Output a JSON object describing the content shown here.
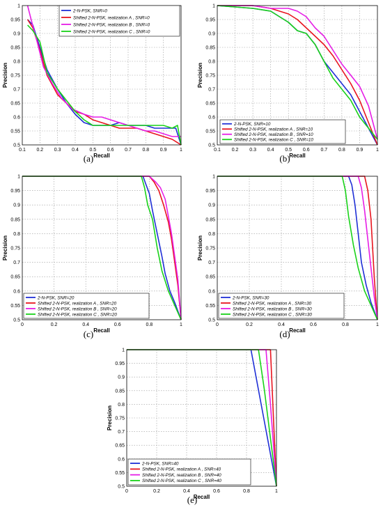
{
  "colors": {
    "blue": "#1f2fd6",
    "red": "#e8141e",
    "magenta": "#e61ee6",
    "green": "#19d219",
    "grid": "#9a9a9a"
  },
  "chart_data": [
    {
      "type": "line",
      "panel_label": "(a)",
      "xlabel": "Recall",
      "ylabel": "Precision",
      "xlim": [
        0.1,
        1.0
      ],
      "ylim": [
        0.5,
        1.0
      ],
      "xticks": [
        "0.1",
        "0.2",
        "0.3",
        "0.4",
        "0.5",
        "0.6",
        "0.7",
        "0.8",
        "0.9",
        "1"
      ],
      "yticks": [
        "0.5",
        "0.55",
        "0.6",
        "0.65",
        "0.7",
        "0.75",
        "0.8",
        "0.85",
        "0.9",
        "0.95",
        "1"
      ],
      "grid": true,
      "legend_position": "top-right",
      "series": [
        {
          "name": "2-N-PSK, SNR=0",
          "color": "blue",
          "x": [
            0.13,
            0.16,
            0.2,
            0.24,
            0.3,
            0.35,
            0.4,
            0.45,
            0.5,
            0.55,
            0.6,
            0.65,
            0.7,
            0.75,
            0.8,
            0.85,
            0.9,
            0.95,
            0.97,
            1.0
          ],
          "y": [
            0.95,
            0.93,
            0.85,
            0.77,
            0.7,
            0.65,
            0.61,
            0.58,
            0.57,
            0.57,
            0.57,
            0.58,
            0.57,
            0.57,
            0.57,
            0.56,
            0.56,
            0.56,
            0.56,
            0.5
          ]
        },
        {
          "name": "Shifted 2-N-PSK, realization A , SNR=0",
          "color": "red",
          "x": [
            0.13,
            0.16,
            0.2,
            0.24,
            0.3,
            0.35,
            0.4,
            0.45,
            0.5,
            0.55,
            0.6,
            0.65,
            0.7,
            0.75,
            0.8,
            0.85,
            0.9,
            0.95,
            1.0
          ],
          "y": [
            0.95,
            0.92,
            0.84,
            0.75,
            0.68,
            0.65,
            0.62,
            0.61,
            0.59,
            0.58,
            0.57,
            0.56,
            0.56,
            0.56,
            0.55,
            0.54,
            0.53,
            0.52,
            0.5
          ]
        },
        {
          "name": "Shifted 2-N-PSK, realization B , SNR=0",
          "color": "magenta",
          "x": [
            0.13,
            0.15,
            0.18,
            0.22,
            0.27,
            0.32,
            0.38,
            0.45,
            0.5,
            0.55,
            0.6,
            0.65,
            0.7,
            0.75,
            0.8,
            0.85,
            0.9,
            0.95,
            1.0
          ],
          "y": [
            1.0,
            0.95,
            0.88,
            0.78,
            0.72,
            0.67,
            0.63,
            0.61,
            0.6,
            0.6,
            0.59,
            0.58,
            0.57,
            0.56,
            0.55,
            0.55,
            0.54,
            0.53,
            0.53
          ]
        },
        {
          "name": "Shifted 2-N-PSK, realization C , SNR=0",
          "color": "green",
          "x": [
            0.13,
            0.16,
            0.2,
            0.24,
            0.3,
            0.35,
            0.4,
            0.45,
            0.5,
            0.55,
            0.6,
            0.65,
            0.7,
            0.75,
            0.8,
            0.85,
            0.9,
            0.95,
            0.98,
            1.0
          ],
          "y": [
            0.93,
            0.91,
            0.87,
            0.76,
            0.7,
            0.66,
            0.62,
            0.59,
            0.57,
            0.57,
            0.57,
            0.57,
            0.57,
            0.57,
            0.57,
            0.57,
            0.57,
            0.56,
            0.57,
            0.5
          ]
        }
      ]
    },
    {
      "type": "line",
      "panel_label": "(b)",
      "xlabel": "Recall",
      "ylabel": "Precision",
      "xlim": [
        0.1,
        1.0
      ],
      "ylim": [
        0.5,
        1.0
      ],
      "xticks": [
        "0.1",
        "0.2",
        "0.3",
        "0.4",
        "0.5",
        "0.6",
        "0.7",
        "0.8",
        "0.9",
        "1"
      ],
      "yticks": [
        "0.5",
        "0.55",
        "0.6",
        "0.65",
        "0.7",
        "0.75",
        "0.8",
        "0.85",
        "0.9",
        "0.95",
        "1"
      ],
      "grid": true,
      "legend_position": "bottom-left",
      "series": [
        {
          "name": "2-N-PSK, SNR=10",
          "color": "blue",
          "x": [
            0.1,
            0.3,
            0.4,
            0.45,
            0.5,
            0.55,
            0.6,
            0.65,
            0.7,
            0.75,
            0.8,
            0.85,
            0.9,
            0.95,
            1.0
          ],
          "y": [
            1.0,
            0.99,
            0.98,
            0.96,
            0.94,
            0.91,
            0.9,
            0.86,
            0.8,
            0.76,
            0.72,
            0.68,
            0.62,
            0.56,
            0.5
          ]
        },
        {
          "name": "Shifted 2-N-PSK, realization A , SNR=10",
          "color": "red",
          "x": [
            0.1,
            0.3,
            0.4,
            0.45,
            0.5,
            0.55,
            0.6,
            0.65,
            0.7,
            0.75,
            0.8,
            0.85,
            0.9,
            0.95,
            1.0
          ],
          "y": [
            1.0,
            1.0,
            0.99,
            0.98,
            0.97,
            0.95,
            0.92,
            0.89,
            0.86,
            0.82,
            0.77,
            0.72,
            0.66,
            0.58,
            0.5
          ]
        },
        {
          "name": "Shifted 2-N-PSK, realization B , SNR=10",
          "color": "magenta",
          "x": [
            0.1,
            0.3,
            0.4,
            0.45,
            0.5,
            0.55,
            0.6,
            0.65,
            0.7,
            0.75,
            0.8,
            0.85,
            0.9,
            0.95,
            1.0
          ],
          "y": [
            1.0,
            1.0,
            0.99,
            0.99,
            0.99,
            0.98,
            0.96,
            0.92,
            0.89,
            0.84,
            0.79,
            0.75,
            0.71,
            0.64,
            0.52
          ]
        },
        {
          "name": "Shifted 2-N-PSK, realization C , SNR=10",
          "color": "green",
          "x": [
            0.1,
            0.3,
            0.4,
            0.45,
            0.5,
            0.55,
            0.6,
            0.65,
            0.7,
            0.75,
            0.8,
            0.85,
            0.9,
            0.95,
            1.0
          ],
          "y": [
            1.0,
            0.99,
            0.98,
            0.96,
            0.94,
            0.91,
            0.9,
            0.86,
            0.8,
            0.74,
            0.7,
            0.66,
            0.6,
            0.56,
            0.52
          ]
        }
      ]
    },
    {
      "type": "line",
      "panel_label": "(c)",
      "xlabel": "Recall",
      "ylabel": "Precision",
      "xlim": [
        0,
        1.0
      ],
      "ylim": [
        0.5,
        1.0
      ],
      "xticks": [
        "0",
        "0.2",
        "0.4",
        "0.6",
        "0.8",
        "1"
      ],
      "yticks": [
        "0.5",
        "0.55",
        "0.6",
        "0.65",
        "0.7",
        "0.75",
        "0.8",
        "0.85",
        "0.9",
        "0.95",
        "1"
      ],
      "grid": true,
      "legend_position": "bottom-left",
      "series": [
        {
          "name": "2-N-PSK, SNR=20",
          "color": "blue",
          "x": [
            0.0,
            0.76,
            0.78,
            0.8,
            0.82,
            0.85,
            0.88,
            0.9,
            0.93,
            0.96,
            1.0
          ],
          "y": [
            1.0,
            1.0,
            0.97,
            0.94,
            0.88,
            0.8,
            0.72,
            0.66,
            0.6,
            0.56,
            0.5
          ]
        },
        {
          "name": "Shifted 2-N-PSK, realization A , SNR=20",
          "color": "red",
          "x": [
            0.0,
            0.8,
            0.83,
            0.86,
            0.89,
            0.92,
            0.94,
            0.96,
            0.98,
            1.0
          ],
          "y": [
            1.0,
            1.0,
            0.98,
            0.95,
            0.9,
            0.84,
            0.78,
            0.7,
            0.62,
            0.5
          ]
        },
        {
          "name": "Shifted 2-N-PSK, realization B , SNR=20",
          "color": "magenta",
          "x": [
            0.0,
            0.8,
            0.84,
            0.87,
            0.9,
            0.92,
            0.94,
            0.96,
            0.98,
            1.0
          ],
          "y": [
            1.0,
            1.0,
            0.98,
            0.96,
            0.92,
            0.86,
            0.8,
            0.72,
            0.64,
            0.5
          ]
        },
        {
          "name": "Shifted 2-N-PSK, realization C , SNR=20",
          "color": "green",
          "x": [
            0.0,
            0.75,
            0.77,
            0.79,
            0.82,
            0.85,
            0.88,
            0.92,
            0.96,
            1.0
          ],
          "y": [
            1.0,
            1.0,
            0.96,
            0.9,
            0.85,
            0.75,
            0.67,
            0.6,
            0.55,
            0.5
          ]
        }
      ]
    },
    {
      "type": "line",
      "panel_label": "(d)",
      "xlabel": "Recall",
      "ylabel": "Precision",
      "xlim": [
        0,
        1.0
      ],
      "ylim": [
        0.5,
        1.0
      ],
      "xticks": [
        "0",
        "0.2",
        "0.4",
        "0.6",
        "0.8",
        "1"
      ],
      "yticks": [
        "0.5",
        "0.55",
        "0.6",
        "0.65",
        "0.7",
        "0.75",
        "0.8",
        "0.85",
        "0.9",
        "0.95",
        "1"
      ],
      "grid": true,
      "legend_position": "bottom-left",
      "series": [
        {
          "name": "2-N-PSK, SNR=30",
          "color": "blue",
          "x": [
            0.0,
            0.82,
            0.84,
            0.86,
            0.88,
            0.9,
            0.93,
            0.96,
            1.0
          ],
          "y": [
            1.0,
            1.0,
            0.97,
            0.9,
            0.8,
            0.7,
            0.62,
            0.56,
            0.5
          ]
        },
        {
          "name": "Shifted 2-N-PSK, realization A , SNR=30",
          "color": "red",
          "x": [
            0.0,
            0.92,
            0.94,
            0.96,
            0.97,
            0.98,
            0.99,
            1.0
          ],
          "y": [
            1.0,
            1.0,
            0.95,
            0.85,
            0.75,
            0.65,
            0.57,
            0.5
          ]
        },
        {
          "name": "Shifted 2-N-PSK, realization B , SNR=30",
          "color": "magenta",
          "x": [
            0.0,
            0.88,
            0.9,
            0.92,
            0.94,
            0.96,
            0.98,
            1.0
          ],
          "y": [
            1.0,
            1.0,
            0.96,
            0.88,
            0.78,
            0.68,
            0.58,
            0.5
          ]
        },
        {
          "name": "Shifted 2-N-PSK, realization C , SNR=30",
          "color": "green",
          "x": [
            0.0,
            0.78,
            0.8,
            0.82,
            0.85,
            0.88,
            0.92,
            0.96,
            1.0
          ],
          "y": [
            1.0,
            1.0,
            0.95,
            0.86,
            0.76,
            0.68,
            0.6,
            0.55,
            0.5
          ]
        }
      ]
    },
    {
      "type": "line",
      "panel_label": "(e)",
      "xlabel": "Recall",
      "ylabel": "Precision",
      "xlim": [
        0,
        1.0
      ],
      "ylim": [
        0.5,
        1.0
      ],
      "xticks": [
        "0",
        "0.2",
        "0.4",
        "0.6",
        "0.8",
        "1"
      ],
      "yticks": [
        "0.5",
        "0.55",
        "0.6",
        "0.65",
        "0.7",
        "0.75",
        "0.8",
        "0.85",
        "0.9",
        "0.95",
        "1"
      ],
      "grid": true,
      "legend_position": "bottom-left",
      "series": [
        {
          "name": "2-N-PSK, SNR=40",
          "color": "blue",
          "x": [
            0.0,
            0.83,
            1.0
          ],
          "y": [
            1.0,
            1.0,
            0.5
          ]
        },
        {
          "name": "Shifted 2-N-PSK, realization A , SNR=40",
          "color": "red",
          "x": [
            0.0,
            0.96,
            0.98,
            1.0
          ],
          "y": [
            1.0,
            1.0,
            0.75,
            0.5
          ]
        },
        {
          "name": "Shifted 2-N-PSK, realization B , SNR=40",
          "color": "magenta",
          "x": [
            0.0,
            0.93,
            0.96,
            1.0
          ],
          "y": [
            1.0,
            1.0,
            0.8,
            0.5
          ]
        },
        {
          "name": "Shifted 2-N-PSK, realization C , SNR=40",
          "color": "green",
          "x": [
            0.0,
            0.88,
            0.92,
            1.0
          ],
          "y": [
            1.0,
            1.0,
            0.85,
            0.5
          ]
        }
      ]
    }
  ]
}
